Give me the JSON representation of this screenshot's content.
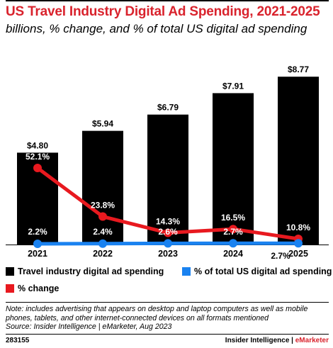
{
  "title": "US Travel Industry Digital Ad Spending, 2021-2025",
  "subtitle": "billions, % change, and % of total US digital ad spending",
  "colors": {
    "title": "#d9232d",
    "bars": "#000000",
    "change": "#e8191f",
    "share": "#1a82f0"
  },
  "chart_data": {
    "type": "bar",
    "categories": [
      "2021",
      "2022",
      "2023",
      "2024",
      "2025"
    ],
    "series": [
      {
        "name": "Travel industry digital ad spending",
        "type": "bar",
        "values": [
          4.8,
          5.94,
          6.79,
          7.91,
          8.77
        ],
        "labels": [
          "$4.80",
          "$5.94",
          "$6.79",
          "$7.91",
          "$8.77"
        ]
      },
      {
        "name": "% change",
        "type": "line",
        "values": [
          52.1,
          23.8,
          14.3,
          16.5,
          10.8
        ],
        "labels": [
          "52.1%",
          "23.8%",
          "14.3%",
          "16.5%",
          "10.8%"
        ]
      },
      {
        "name": "% of total US digital ad spending",
        "type": "line",
        "values": [
          2.2,
          2.4,
          2.6,
          2.7,
          2.7
        ],
        "labels": [
          "2.2%",
          "2.4%",
          "2.6%",
          "2.7%",
          "2.7%"
        ]
      }
    ],
    "ylim": [
      0,
      10
    ],
    "legend_position": "bottom"
  },
  "legend": {
    "bars": "Travel industry digital ad spending",
    "share": "% of total US digital ad spending",
    "change": "% change"
  },
  "note": "Note: includes advertising that appears on desktop and laptop computers as well as mobile phones, tablets, and other internet-connected devices on all formats mentioned",
  "source": "Source: Insider Intelligence | eMarketer, Aug 2023",
  "footer": {
    "id": "283155",
    "brand_a": "Insider Intelligence | ",
    "brand_b": "eMarketer"
  }
}
